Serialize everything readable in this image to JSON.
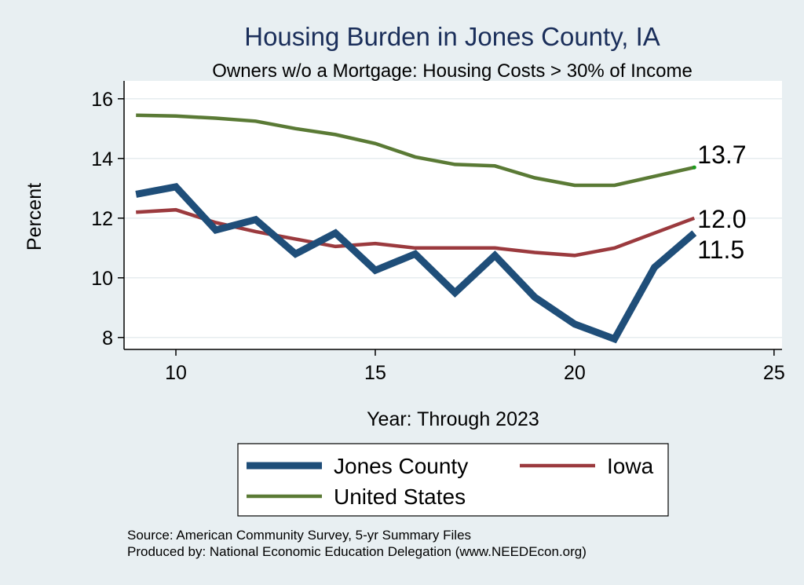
{
  "chart_data": {
    "type": "line",
    "title": "Housing Burden in Jones County, IA",
    "subtitle": "Owners w/o a Mortgage: Housing Costs > 30% of Income",
    "xlabel": "Year: Through 2023",
    "ylabel": "Percent",
    "xlim": [
      8.7,
      25.2
    ],
    "ylim": [
      7.6,
      16.6
    ],
    "xticks": [
      10,
      15,
      20,
      25
    ],
    "yticks": [
      8,
      10,
      12,
      14,
      16
    ],
    "x": [
      9,
      10,
      11,
      12,
      13,
      14,
      15,
      16,
      17,
      18,
      19,
      20,
      21,
      22,
      23
    ],
    "series": [
      {
        "name": "Jones County",
        "color": "#1f4e79",
        "values": [
          12.8,
          13.05,
          11.6,
          11.95,
          10.8,
          11.5,
          10.25,
          10.8,
          9.5,
          10.75,
          9.35,
          8.45,
          7.95,
          10.35,
          11.5
        ],
        "end_label": "11.5"
      },
      {
        "name": "Iowa",
        "color": "#9b3a3e",
        "values": [
          12.2,
          12.28,
          11.85,
          11.55,
          11.3,
          11.05,
          11.15,
          11.0,
          11.0,
          11.0,
          10.85,
          10.75,
          11.0,
          11.5,
          12.0
        ],
        "end_label": "12.0"
      },
      {
        "name": "United States",
        "color": "#5a7a35",
        "values": [
          15.45,
          15.42,
          15.35,
          15.25,
          15.0,
          14.8,
          14.5,
          14.05,
          13.8,
          13.75,
          13.35,
          13.1,
          13.1,
          13.4,
          13.7
        ],
        "end_label": "13.7"
      }
    ],
    "legend": {
      "position": "bottom",
      "entries": [
        "Jones County",
        "Iowa",
        "United States"
      ]
    },
    "source_lines": [
      "Source: American Community Survey, 5-yr Summary Files",
      "Produced by: National Economic Education Delegation (www.NEEDEcon.org)"
    ]
  }
}
